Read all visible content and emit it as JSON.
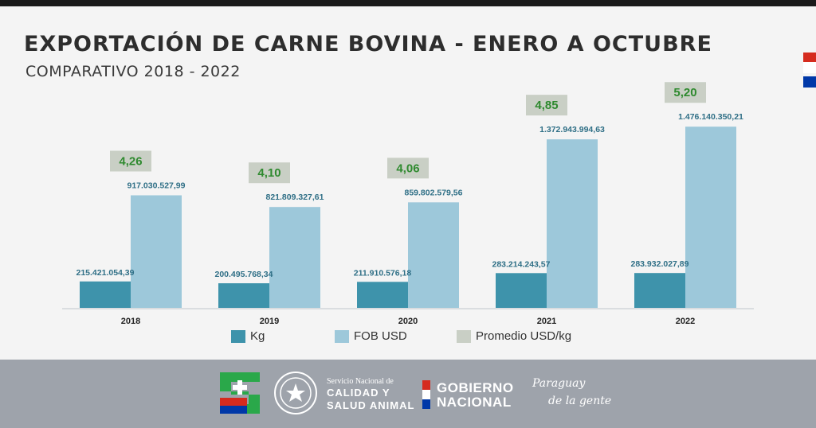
{
  "header": {
    "title": "EXPORTACIÓN DE CARNE BOVINA - ENERO A OCTUBRE",
    "subtitle": "COMPARATIVO 2018 - 2022"
  },
  "colors": {
    "kg": "#3e93ab",
    "fob": "#9dc8da",
    "promedio": "#c9cfc5",
    "promedio_text": "#2f8a2f",
    "label_text": "#2f6f86"
  },
  "chart_data": {
    "type": "bar",
    "categories": [
      "2018",
      "2019",
      "2020",
      "2021",
      "2022"
    ],
    "series": [
      {
        "name": "Kg",
        "values": [
          215421054.39,
          200495768.34,
          211910576.18,
          283214243.57,
          283932027.89
        ],
        "labels": [
          "215.421.054,39",
          "200.495.768,34",
          "211.910.576,18",
          "283.214.243,57",
          "283.932.027,89"
        ]
      },
      {
        "name": "FOB USD",
        "values": [
          917030527.99,
          821809327.61,
          859802579.56,
          1372943994.63,
          1476140350.21
        ],
        "labels": [
          "917.030.527,99",
          "821.809.327,61",
          "859.802.579,56",
          "1.372.943.994,63",
          "1.476.140.350,21"
        ]
      },
      {
        "name": "Promedio USD/kg",
        "values": [
          4.26,
          4.1,
          4.06,
          4.85,
          5.2
        ],
        "labels": [
          "4,26",
          "4,10",
          "4,06",
          "4,85",
          "5,20"
        ]
      }
    ],
    "legend_position": "bottom",
    "grid": false
  },
  "legend": {
    "kg": "Kg",
    "fob": "FOB USD",
    "promedio": "Promedio USD/kg"
  },
  "footer": {
    "senacsa_line1": "Servicio Nacional de",
    "senacsa_line2": "CALIDAD Y",
    "senacsa_line3": "SALUD ANIMAL",
    "gobierno_line1": "GOBIERNO",
    "gobierno_line2": "NACIONAL",
    "paraguay_line1": "Paraguay",
    "paraguay_line2": "de la gente"
  }
}
